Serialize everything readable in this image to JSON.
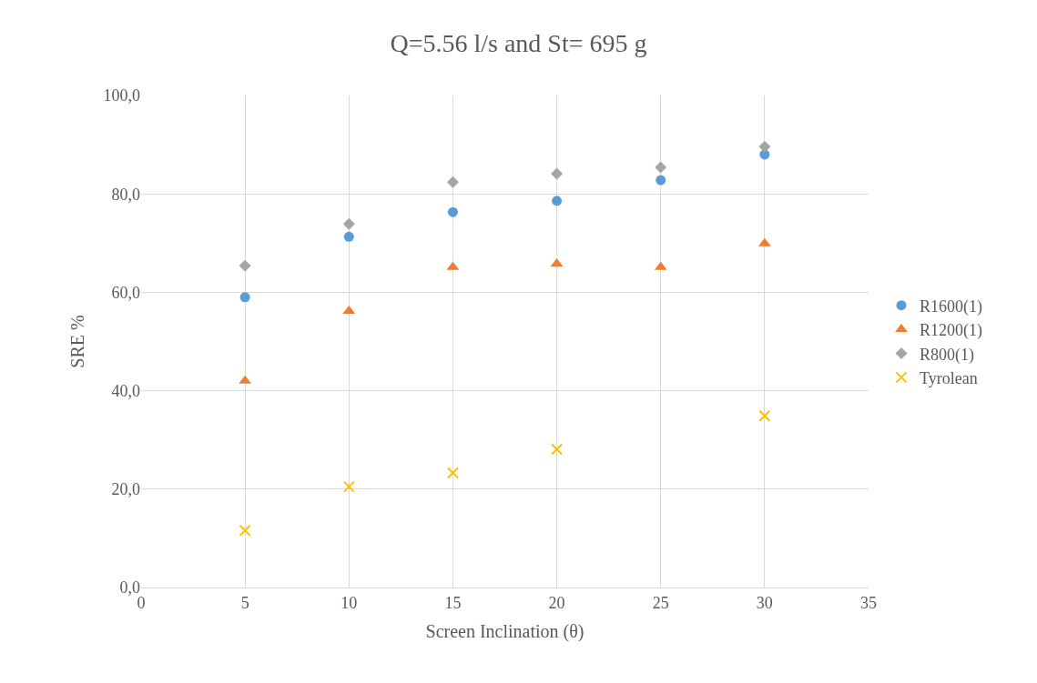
{
  "chart_data": {
    "type": "scatter",
    "title": "Q=5.56 l/s and St= 695 g",
    "xlabel": "Screen Inclination (θ)",
    "ylabel": "SRE %",
    "x": [
      5,
      10,
      15,
      20,
      25,
      30
    ],
    "series": [
      {
        "name": "R1600(1)",
        "color": "#5b9bd5",
        "marker": "circle",
        "values": [
          59.0,
          71.3,
          76.3,
          78.6,
          82.8,
          88.0
        ]
      },
      {
        "name": "R1200(1)",
        "color": "#ed7d31",
        "marker": "triangle",
        "values": [
          42.0,
          56.2,
          65.1,
          65.8,
          65.1,
          69.9
        ]
      },
      {
        "name": "R800(1)",
        "color": "#a5a5a5",
        "marker": "diamond",
        "values": [
          65.4,
          73.9,
          82.4,
          84.1,
          85.4,
          89.6
        ]
      },
      {
        "name": "Tyrolean",
        "color": "#ffc000",
        "marker": "cross",
        "x": [
          5,
          10,
          15,
          20,
          30
        ],
        "values": [
          11.6,
          20.5,
          23.3,
          28.1,
          34.9
        ]
      }
    ],
    "xlim": [
      0,
      35
    ],
    "xticks": [
      0,
      5,
      10,
      15,
      20,
      25,
      30,
      35
    ],
    "ylim": [
      0,
      100
    ],
    "yticks": [
      {
        "value": 0,
        "label": "0,0"
      },
      {
        "value": 20,
        "label": "20,0"
      },
      {
        "value": 40,
        "label": "40,0"
      },
      {
        "value": 60,
        "label": "60,0"
      },
      {
        "value": 80,
        "label": "80,0"
      },
      {
        "value": 100,
        "label": "100,0"
      }
    ],
    "grid": true,
    "legend": "right"
  }
}
